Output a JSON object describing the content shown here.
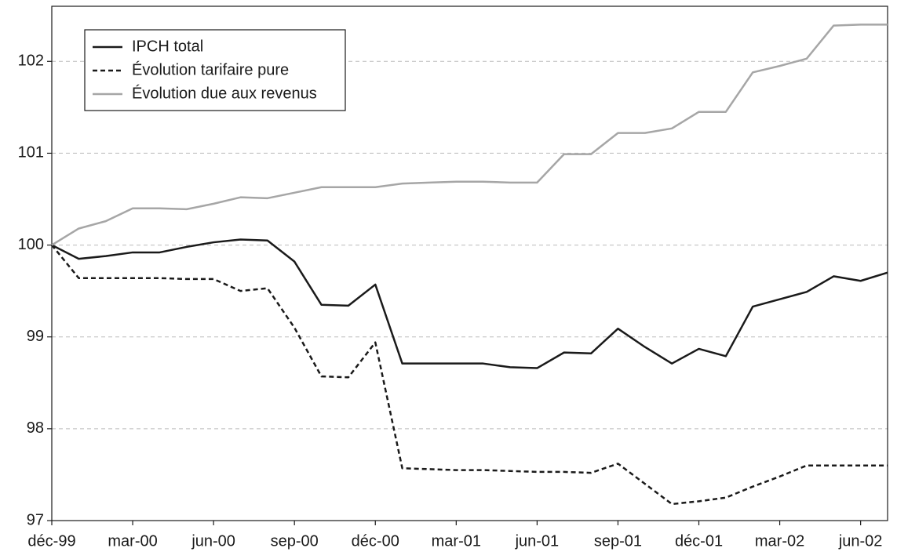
{
  "chart_data": {
    "type": "line",
    "categories": [
      "déc-99",
      null,
      null,
      "mar-00",
      null,
      null,
      "jun-00",
      null,
      null,
      "sep-00",
      null,
      null,
      "déc-00",
      null,
      null,
      "mar-01",
      null,
      null,
      "jun-01",
      null,
      null,
      "sep-01",
      null,
      null,
      "déc-01",
      null,
      null,
      "mar-02",
      null,
      null,
      "jun-02",
      null
    ],
    "series": [
      {
        "name": "IPCH total",
        "color": "#1a1a1a",
        "dash": "solid",
        "values": [
          100,
          99.85,
          99.88,
          99.92,
          99.92,
          99.98,
          100.03,
          100.06,
          100.05,
          99.82,
          99.35,
          99.34,
          99.57,
          98.71,
          98.71,
          98.71,
          98.71,
          98.67,
          98.66,
          98.83,
          98.82,
          99.09,
          98.89,
          98.71,
          98.87,
          98.79,
          99.33,
          99.41,
          99.49,
          99.66,
          99.61,
          99.7
        ]
      },
      {
        "name": "Évolution tarifaire pure",
        "color": "#1a1a1a",
        "dash": "dashed",
        "values": [
          100,
          99.64,
          99.64,
          99.64,
          99.64,
          99.63,
          99.63,
          99.5,
          99.53,
          99.1,
          98.57,
          98.56,
          98.94,
          97.57,
          97.56,
          97.55,
          97.55,
          97.54,
          97.53,
          97.53,
          97.52,
          97.62,
          97.4,
          97.18,
          97.21,
          97.25,
          97.37,
          97.48,
          97.6,
          97.6,
          97.6,
          97.6
        ]
      },
      {
        "name": "Évolution due aux revenus",
        "color": "#a6a6a6",
        "dash": "solid",
        "values": [
          100,
          100.18,
          100.26,
          100.4,
          100.4,
          100.39,
          100.45,
          100.52,
          100.51,
          100.57,
          100.63,
          100.63,
          100.63,
          100.67,
          100.68,
          100.69,
          100.69,
          100.68,
          100.68,
          100.99,
          100.99,
          101.22,
          101.22,
          101.27,
          101.45,
          101.45,
          101.88,
          101.95,
          102.03,
          102.39,
          102.4,
          102.4
        ]
      }
    ],
    "ylim": [
      97,
      102.6
    ],
    "yticks": [
      97,
      98,
      99,
      100,
      101,
      102
    ],
    "grid": true,
    "legend": "top-left"
  }
}
